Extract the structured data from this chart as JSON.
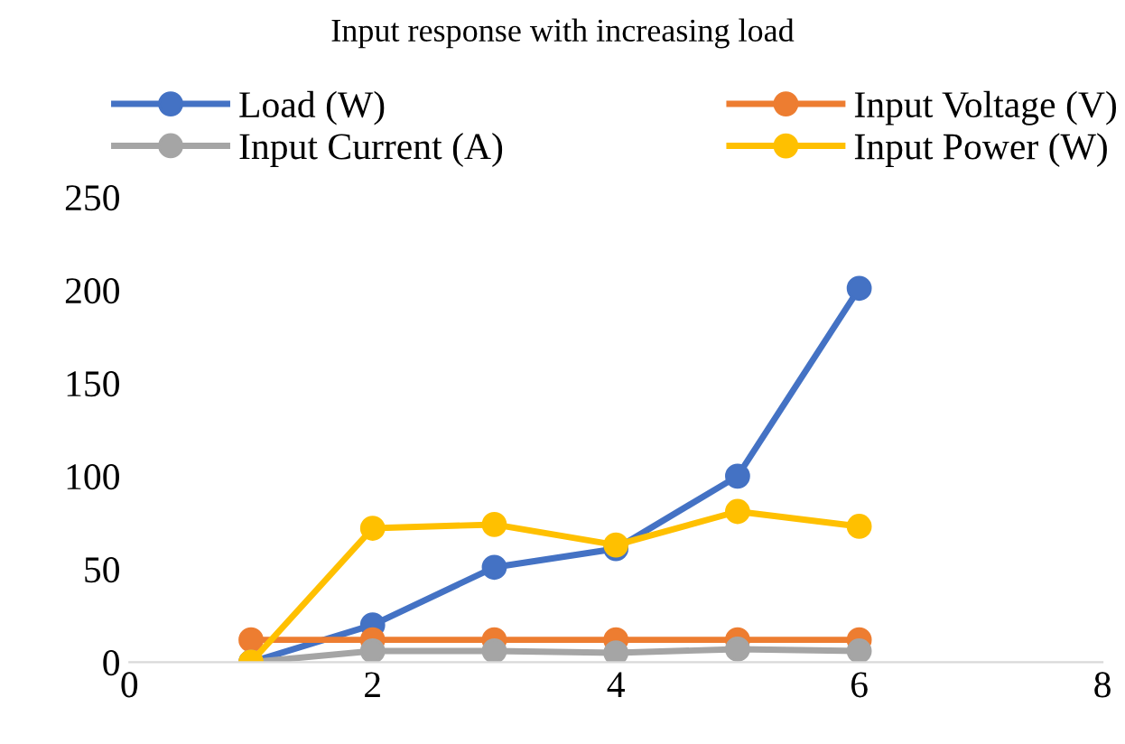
{
  "chart_data": {
    "type": "line",
    "title": "Input response with increasing load",
    "x": [
      1,
      2,
      3,
      4,
      5,
      6
    ],
    "series": [
      {
        "name": "Load (W)",
        "color": "#4472c4",
        "values": [
          0,
          20,
          51,
          61,
          100,
          201
        ]
      },
      {
        "name": "Input Voltage (V)",
        "color": "#ed7d31",
        "values": [
          12,
          12,
          12,
          12,
          12,
          12
        ]
      },
      {
        "name": "Input Current (A)",
        "color": "#a5a5a5",
        "values": [
          0,
          6,
          6,
          5,
          7,
          6
        ]
      },
      {
        "name": "Input Power (W)",
        "color": "#ffc000",
        "values": [
          0,
          72,
          74,
          63,
          81,
          73
        ]
      }
    ],
    "xlim": [
      0,
      8
    ],
    "xticks": [
      0,
      2,
      4,
      6,
      8
    ],
    "ylim": [
      0,
      250
    ],
    "yticks": [
      0,
      50,
      100,
      150,
      200,
      250
    ],
    "grid": false,
    "legend": "top",
    "marker": "circle",
    "line_style": "solid"
  }
}
